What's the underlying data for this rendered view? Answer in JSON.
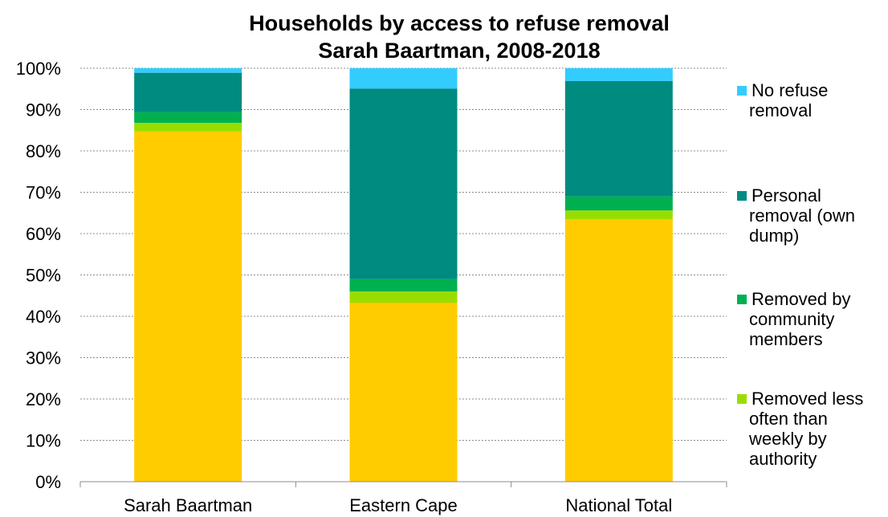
{
  "chart_data": {
    "type": "bar",
    "stacked": true,
    "title": "Households by access to refuse removal",
    "subtitle": "Sarah Baartman, 2008-2018",
    "xlabel": "",
    "ylabel": "",
    "ylim": [
      0,
      100
    ],
    "y_ticks": [
      "0%",
      "10%",
      "20%",
      "30%",
      "40%",
      "50%",
      "60%",
      "70%",
      "80%",
      "90%",
      "100%"
    ],
    "grid": true,
    "legend_position": "right",
    "categories": [
      "Sarah Baartman",
      "Eastern Cape",
      "National Total"
    ],
    "series": [
      {
        "values": [
          84.7,
          43.3,
          63.5
        ],
        "color": "#ffcc00"
      },
      {
        "name": "Removed less often than weekly by authority",
        "values": [
          2.1,
          2.7,
          2.1
        ],
        "color": "#99dd00"
      },
      {
        "name": "Removed by community members",
        "values": [
          2.6,
          3.0,
          3.4
        ],
        "color": "#00b050"
      },
      {
        "name": "Personal removal (own dump)",
        "values": [
          9.5,
          46.1,
          27.9
        ],
        "color": "#008b80"
      },
      {
        "name": "No refuse removal",
        "values": [
          1.1,
          4.9,
          3.1
        ],
        "color": "#33ccff"
      }
    ],
    "legend": [
      {
        "lines": [
          "No refuse",
          "removal"
        ],
        "color": "#33ccff"
      },
      {
        "lines": [
          "Personal",
          "removal (own",
          "dump)"
        ],
        "color": "#008b80"
      },
      {
        "lines": [
          "Removed by",
          "community",
          "members"
        ],
        "color": "#00b050"
      },
      {
        "lines": [
          "Removed less",
          "often than",
          "weekly by",
          "authority"
        ],
        "color": "#99dd00"
      }
    ]
  }
}
